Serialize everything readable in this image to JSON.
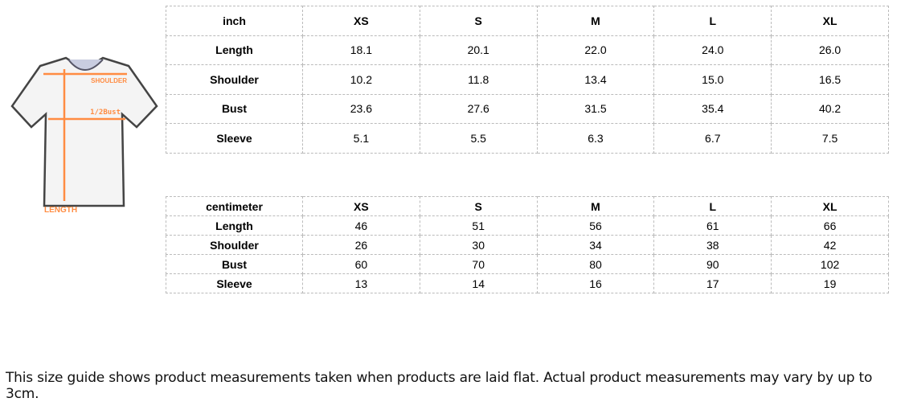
{
  "diagram": {
    "labels": {
      "shoulder": "SHOULDER",
      "bust": "1/2Bust",
      "length": "LENGTH"
    },
    "accent": "#ff8c42"
  },
  "inch": {
    "headers": [
      "inch",
      "XS",
      "S",
      "M",
      "L",
      "XL"
    ],
    "rows": [
      [
        "Length",
        "18.1",
        "20.1",
        "22.0",
        "24.0",
        "26.0"
      ],
      [
        "Shoulder",
        "10.2",
        "11.8",
        "13.4",
        "15.0",
        "16.5"
      ],
      [
        "Bust",
        "23.6",
        "27.6",
        "31.5",
        "35.4",
        "40.2"
      ],
      [
        "Sleeve",
        "5.1",
        "5.5",
        "6.3",
        "6.7",
        "7.5"
      ]
    ]
  },
  "cm": {
    "headers": [
      "centimeter",
      "XS",
      "S",
      "M",
      "L",
      "XL"
    ],
    "rows": [
      [
        "Length",
        "46",
        "51",
        "56",
        "61",
        "66"
      ],
      [
        "Shoulder",
        "26",
        "30",
        "34",
        "38",
        "42"
      ],
      [
        "Bust",
        "60",
        "70",
        "80",
        "90",
        "102"
      ],
      [
        "Sleeve",
        "13",
        "14",
        "16",
        "17",
        "19"
      ]
    ]
  },
  "note": "This size guide shows product measurements taken when products are laid flat. Actual product measurements may vary by up to 3cm."
}
